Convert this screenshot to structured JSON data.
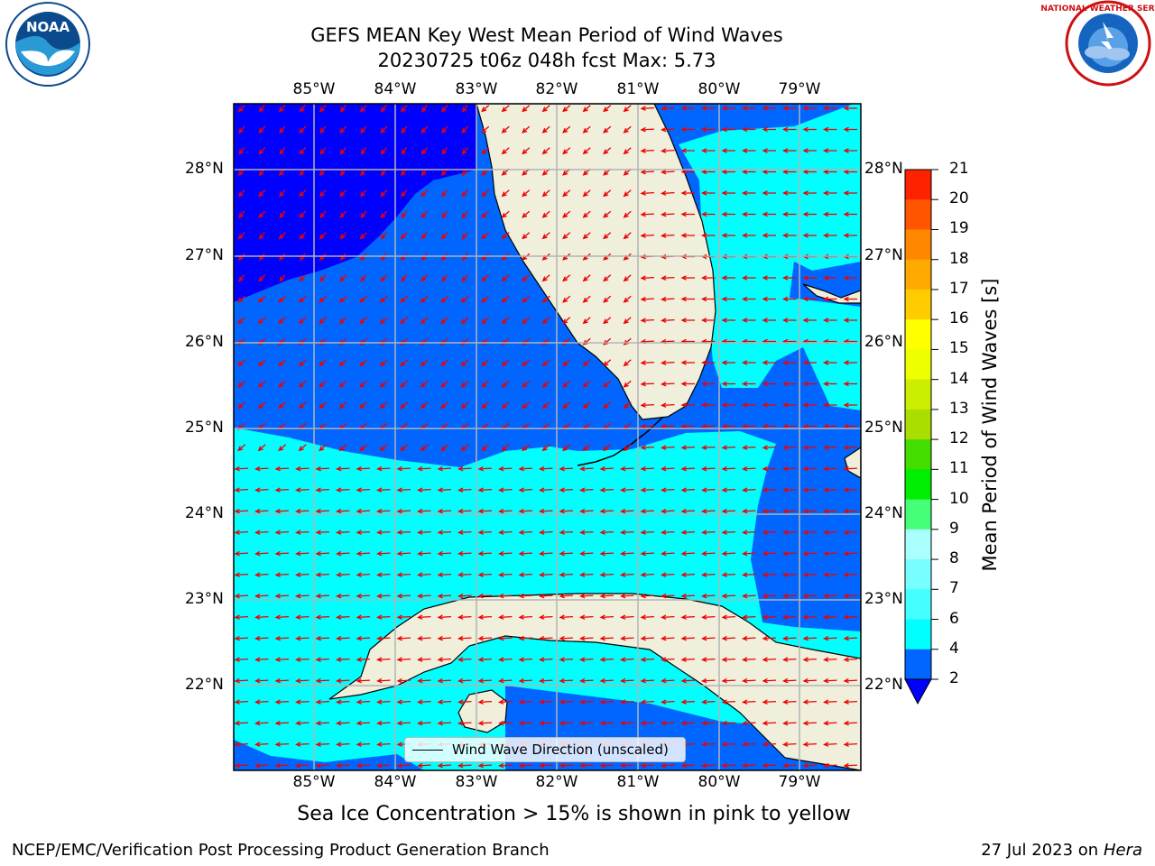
{
  "title": {
    "line1": "GEFS MEAN Key West Mean Period of Wind Waves",
    "line2": "20230725 t06z 048h fcst   Max: 5.73"
  },
  "axes": {
    "lon_labels": [
      "85°W",
      "84°W",
      "83°W",
      "82°W",
      "81°W",
      "80°W",
      "79°W"
    ],
    "lat_labels": [
      "28°N",
      "27°N",
      "26°N",
      "25°N",
      "24°N",
      "23°N",
      "22°N"
    ]
  },
  "colorbar": {
    "title": "Mean Period of Wind Waves [s]",
    "ticks": [
      "21",
      "20",
      "19",
      "18",
      "17",
      "16",
      "15",
      "14",
      "13",
      "12",
      "11",
      "10",
      "9",
      "8",
      "7",
      "6",
      "4",
      "2"
    ],
    "colors": {
      "below_2": "#0000ff",
      "2_4": "#0066ff",
      "4_6": "#00ffff",
      "6_7": "#44ffff",
      "7_8": "#77ffff",
      "8_9": "#aaffff",
      "9_10": "#44ff77",
      "10_11": "#00ee00",
      "11_12": "#44dd00",
      "12_13": "#aadd00",
      "13_14": "#ccee00",
      "14_15": "#eeff00",
      "15_16": "#ffff00",
      "16_17": "#ffcc00",
      "17_18": "#ffaa00",
      "18_19": "#ff8800",
      "19_20": "#ff5500",
      "20_21": "#ff2200",
      "21_up": "#ff0000"
    }
  },
  "legend": {
    "label": "Wind Wave Direction (unscaled)"
  },
  "map_colors": {
    "land": "#efefdc",
    "arrows": "#ee0000",
    "grid": "#b3b3b3",
    "coast": "#000000"
  },
  "logos": {
    "left": "NOAA",
    "right": "NATIONAL WEATHER SERVICE"
  },
  "subtitle": "Sea Ice Concentration > 15% is shown in pink to yellow",
  "footer": {
    "left": "NCEP/EMC/Verification Post Processing Product Generation Branch",
    "right_prefix": "27 Jul 2023 on ",
    "right_host": "Hera"
  }
}
